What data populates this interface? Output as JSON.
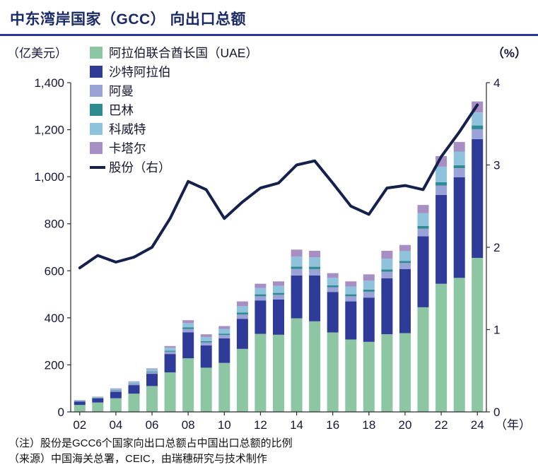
{
  "header": {
    "title": "中东湾岸国家（GCC） 向出口总额"
  },
  "notes": {
    "note": "（注）股份是GCC6个国家向出口总额占中国出口总额的比例",
    "source": "（来源）中国海关总署，CEIC，由瑞穗研究与技术制作"
  },
  "legend": {
    "items": [
      {
        "label": "阿拉伯联合酋长国（UAE）",
        "color": "#8cc6a3",
        "type": "box"
      },
      {
        "label": "沙特阿拉伯",
        "color": "#2e3b99",
        "type": "box"
      },
      {
        "label": "阿曼",
        "color": "#9aa3d8",
        "type": "box"
      },
      {
        "label": "巴林",
        "color": "#2e8b8f",
        "type": "box"
      },
      {
        "label": "科威特",
        "color": "#8fc2dd",
        "type": "box"
      },
      {
        "label": "卡塔尔",
        "color": "#a78fc6",
        "type": "box"
      },
      {
        "label": "股份（右）",
        "color": "#15214d",
        "type": "line"
      }
    ]
  },
  "chart_data": {
    "type": "bar",
    "title": "中东湾岸国家（GCC） 向出口总额",
    "x": [
      2002,
      2003,
      2004,
      2005,
      2006,
      2007,
      2008,
      2009,
      2010,
      2011,
      2012,
      2013,
      2014,
      2015,
      2016,
      2017,
      2018,
      2019,
      2020,
      2021,
      2022,
      2023,
      2024
    ],
    "x_tick_labels": [
      "02",
      "04",
      "06",
      "08",
      "10",
      "12",
      "14",
      "16",
      "18",
      "20",
      "22",
      "24"
    ],
    "series": [
      {
        "name": "阿拉伯联合酋长国（UAE）",
        "color": "#8cc6a3",
        "values": [
          30,
          40,
          58,
          78,
          110,
          168,
          228,
          188,
          208,
          268,
          332,
          328,
          398,
          385,
          338,
          308,
          298,
          330,
          335,
          445,
          545,
          570,
          655
        ]
      },
      {
        "name": "沙特阿拉伯",
        "color": "#2e3b99",
        "values": [
          14,
          18,
          28,
          36,
          52,
          78,
          110,
          95,
          105,
          128,
          142,
          150,
          182,
          195,
          172,
          162,
          188,
          238,
          272,
          302,
          378,
          428,
          505
        ]
      },
      {
        "name": "阿曼",
        "color": "#9aa3d8",
        "values": [
          2,
          2,
          4,
          5,
          7,
          10,
          15,
          13,
          14,
          18,
          18,
          20,
          28,
          27,
          20,
          22,
          25,
          28,
          26,
          32,
          40,
          38,
          42
        ]
      },
      {
        "name": "巴林",
        "color": "#2e8b8f",
        "values": [
          1,
          1,
          2,
          2,
          3,
          4,
          6,
          5,
          6,
          8,
          8,
          8,
          10,
          10,
          8,
          8,
          9,
          10,
          9,
          11,
          14,
          13,
          16
        ]
      },
      {
        "name": "科威特",
        "color": "#8fc2dd",
        "values": [
          2,
          3,
          5,
          6,
          9,
          13,
          19,
          18,
          20,
          28,
          27,
          30,
          42,
          40,
          32,
          33,
          38,
          45,
          42,
          55,
          66,
          58,
          55
        ]
      },
      {
        "name": "卡塔尔",
        "color": "#a78fc6",
        "values": [
          1,
          1,
          3,
          3,
          4,
          7,
          12,
          11,
          12,
          20,
          18,
          19,
          30,
          28,
          20,
          22,
          27,
          34,
          26,
          35,
          45,
          41,
          47
        ]
      }
    ],
    "line_series": {
      "name": "股份（右）",
      "color": "#15214d",
      "values": [
        1.75,
        1.9,
        1.82,
        1.88,
        2.0,
        2.35,
        2.8,
        2.7,
        2.35,
        2.55,
        2.72,
        2.78,
        3.0,
        3.05,
        2.78,
        2.5,
        2.4,
        2.72,
        2.75,
        2.7,
        3.1,
        3.4,
        3.73
      ]
    },
    "ylim_left": [
      0,
      1400
    ],
    "ylim_right": [
      0,
      4
    ],
    "yticks_left": [
      0,
      200,
      400,
      600,
      800,
      1000,
      1200,
      1400
    ],
    "yticks_right": [
      0,
      1,
      2,
      3,
      4
    ],
    "left_unit": "（亿美元）",
    "right_unit": "（%）",
    "x_unit": "（年）",
    "legend_position": "upper-left-inside",
    "grid": false
  }
}
